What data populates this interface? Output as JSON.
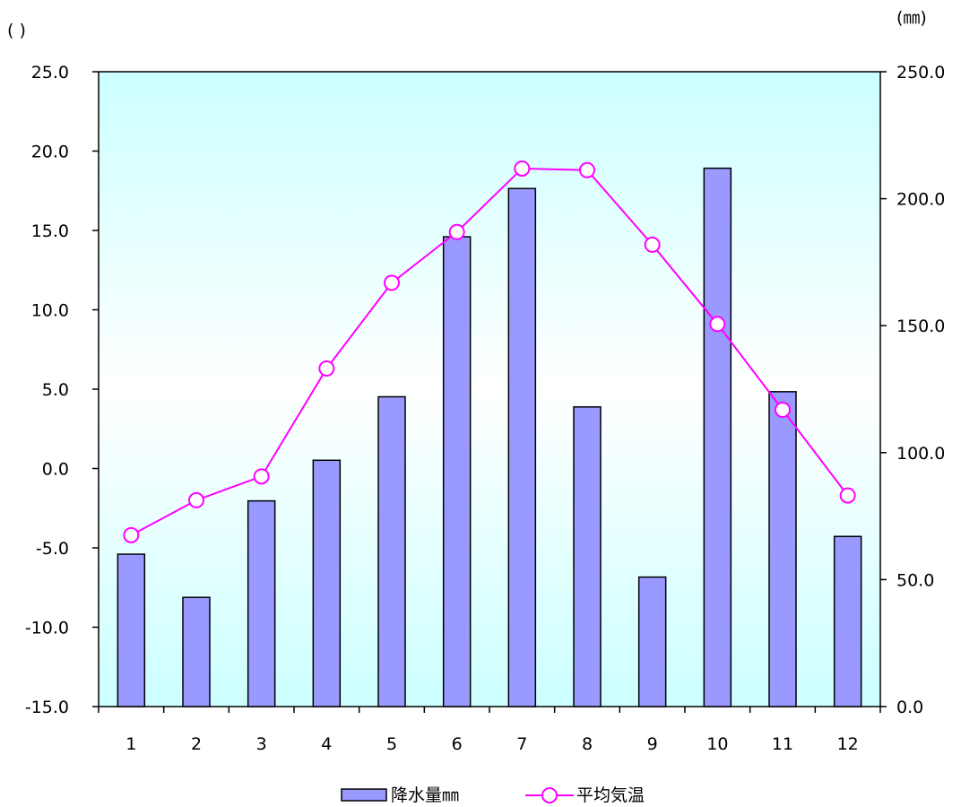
{
  "left_axis_unit": "(   )",
  "right_axis_unit": "(㎜)",
  "chart_data": {
    "type": "bar+line",
    "categories": [
      "1",
      "2",
      "3",
      "4",
      "5",
      "6",
      "7",
      "8",
      "9",
      "10",
      "11",
      "12"
    ],
    "series": [
      {
        "name": "降水量㎜",
        "type": "bar",
        "axis": "right",
        "color": "#9999ff",
        "values": [
          60.0,
          43.0,
          81.0,
          97.0,
          122.0,
          185.0,
          204.0,
          118.0,
          51.0,
          212.0,
          124.0,
          67.0
        ]
      },
      {
        "name": "平均気温",
        "type": "line",
        "axis": "left",
        "color": "#ff00ff",
        "values": [
          -4.2,
          -2.0,
          -0.5,
          6.3,
          11.7,
          14.9,
          18.9,
          18.8,
          14.1,
          9.1,
          3.7,
          -1.7
        ]
      }
    ],
    "left_axis": {
      "min": -15,
      "max": 25,
      "step": 5,
      "ticks": [
        "25.0",
        "20.0",
        "15.0",
        "10.0",
        "5.0",
        "0.0",
        "-5.0",
        "-10.0",
        "-15.0"
      ]
    },
    "right_axis": {
      "min": 0,
      "max": 250,
      "step": 50,
      "ticks": [
        "250.0",
        "200.0",
        "150.0",
        "100.0",
        "50.0",
        "0.0"
      ]
    },
    "legend": {
      "position": "bottom"
    },
    "grid": false
  }
}
